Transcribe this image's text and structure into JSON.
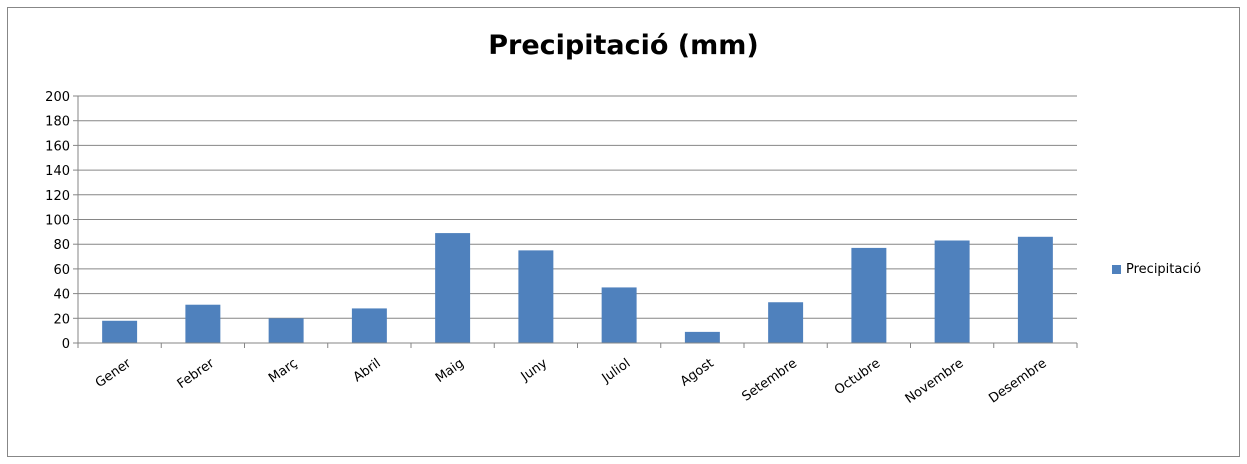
{
  "chart_data": {
    "type": "bar",
    "title": "Precipitació (mm)",
    "categories": [
      "Gener",
      "Febrer",
      "Març",
      "Abril",
      "Maig",
      "Juny",
      "Juliol",
      "Agost",
      "Setembre",
      "Octubre",
      "Novembre",
      "Desembre"
    ],
    "series": [
      {
        "name": "Precipitació",
        "values": [
          18,
          31,
          20,
          28,
          89,
          75,
          45,
          9,
          33,
          77,
          83,
          86
        ],
        "color": "#4F81BD"
      }
    ],
    "ylim": [
      0,
      200
    ],
    "yticks": [
      "0",
      "20",
      "40",
      "60",
      "80",
      "100",
      "120",
      "140",
      "160",
      "180",
      "200"
    ],
    "grid": true,
    "legend_position": "right"
  }
}
